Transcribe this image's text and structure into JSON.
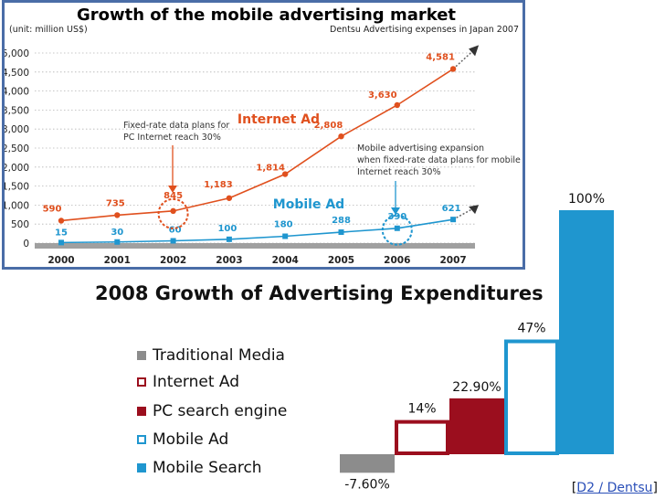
{
  "chart_data": [
    {
      "type": "line",
      "title": "Growth of the mobile advertising market",
      "unit_label": "(unit: million US$)",
      "source_label": "Dentsu Advertising expenses in Japan 2007",
      "x": [
        "2000",
        "2001",
        "2002",
        "2003",
        "2004",
        "2005",
        "2006",
        "2007"
      ],
      "y_ticks": [
        "5,000",
        "4,500",
        "4,000",
        "3,500",
        "3,000",
        "2,500",
        "2,000",
        "1,500",
        "1,000",
        "500",
        "0"
      ],
      "ylim": [
        0,
        5000
      ],
      "series": [
        {
          "name": "Internet Ad",
          "color": "#e0501e",
          "values": [
            590,
            735,
            845,
            1183,
            1814,
            2808,
            3630,
            4581
          ],
          "labels": [
            "590",
            "735",
            "845",
            "1,183",
            "1,814",
            "2,808",
            "3,630",
            "4,581"
          ]
        },
        {
          "name": "Mobile Ad",
          "color": "#1f96cf",
          "values": [
            15,
            30,
            60,
            100,
            180,
            288,
            390,
            621
          ],
          "labels": [
            "15",
            "30",
            "60",
            "100",
            "180",
            "288",
            "390",
            "621"
          ]
        }
      ],
      "annotations": {
        "fixed_rate_line1": "Fixed-rate data plans for",
        "fixed_rate_line2": "PC Internet reach 30%",
        "mobile_exp_line1": "Mobile advertising expansion",
        "mobile_exp_line2": "when fixed-rate data plans for mobile",
        "mobile_exp_line3": "Internet reach 30%"
      },
      "grid": true
    },
    {
      "type": "bar",
      "title": "2008 Growth of Advertising Expenditures",
      "categories": [
        "Traditional Media",
        "Internet Ad",
        "PC search engine",
        "Mobile Ad",
        "Mobile Search"
      ],
      "values": [
        -7.6,
        14,
        22.9,
        47,
        100
      ],
      "value_labels": [
        "-7.60%",
        "14%",
        "22.90%",
        "47%",
        "100%"
      ],
      "colors": [
        "#8c8c8c",
        "#9b0e1e",
        "#9b0e1e",
        "#1f96cf",
        "#1f96cf"
      ],
      "outlined": [
        false,
        true,
        false,
        true,
        false
      ],
      "legend": "left"
    }
  ],
  "credit": {
    "open": "[",
    "link": "D2 / Dentsu",
    "close": "]"
  }
}
